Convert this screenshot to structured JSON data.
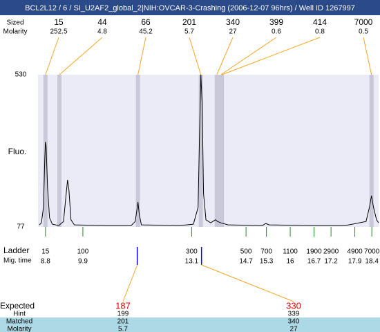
{
  "title": "BCL2L12 / 6 / SI_U2AF2_global_2|NIH:OVCAR-3-Crashing (2006-12-07 96hrs) / Well ID 1267997",
  "chart_data": {
    "type": "electropherogram",
    "y_label": "Fluo.",
    "ylim": [
      77,
      530
    ],
    "yticks": [
      77,
      530
    ],
    "xlim": [
      8.58,
      18.6
    ],
    "color": "#000000",
    "x": [
      8.62,
      8.68,
      8.74,
      8.78,
      8.8,
      8.82,
      8.86,
      8.92,
      9.0,
      9.19,
      9.33,
      9.41,
      9.45,
      9.49,
      9.55,
      9.65,
      10.51,
      11.32,
      11.44,
      11.5,
      11.52,
      11.56,
      11.62,
      12.74,
      13.15,
      13.29,
      13.33,
      13.37,
      13.41,
      13.45,
      13.52,
      13.66,
      13.8,
      13.86,
      13.96,
      14.17,
      15.18,
      15.28,
      15.38,
      16.6,
      17.62,
      18.23,
      18.33,
      18.39,
      18.45,
      18.54,
      18.6
    ],
    "values": [
      83,
      89,
      135,
      279,
      330,
      316,
      196,
      104,
      85,
      81,
      93,
      176,
      217,
      186,
      98,
      83,
      81,
      81,
      93,
      135,
      151,
      114,
      83,
      81,
      85,
      135,
      341,
      530,
      444,
      176,
      98,
      89,
      98,
      93,
      89,
      83,
      81,
      87,
      83,
      81,
      81,
      93,
      135,
      170,
      135,
      98,
      89
    ],
    "peak_row_labels": {
      "sized": "Sized",
      "molarity": "Molarity"
    },
    "peaks": {
      "times": [
        8.8,
        9.21,
        11.52,
        13.37,
        13.84,
        13.96,
        13.99,
        18.39
      ],
      "sizes": [
        15,
        44,
        66,
        201,
        340,
        399,
        414,
        7000
      ],
      "molarity": [
        252.5,
        4.8,
        45.2,
        5.7,
        27,
        0.6,
        0.8,
        0.5
      ]
    },
    "ladder": {
      "label": "Ladder",
      "time_label": "Mig. time",
      "sizes": [
        15,
        100,
        300,
        500,
        700,
        1100,
        1900,
        2900,
        4900,
        7000
      ],
      "times": [
        8.8,
        9.9,
        13.1,
        14.7,
        15.3,
        16,
        16.7,
        17.2,
        17.9,
        18.4
      ]
    },
    "expected": {
      "label": "Expected",
      "hint_label": "Hint",
      "matched_label": "Matched",
      "molarity_label": "Molarity",
      "times": [
        11.5,
        13.39
      ],
      "expected": [
        187,
        330
      ],
      "hint": [
        199,
        339
      ],
      "matched": [
        201,
        340
      ],
      "molarity": [
        5.7,
        27
      ]
    }
  }
}
